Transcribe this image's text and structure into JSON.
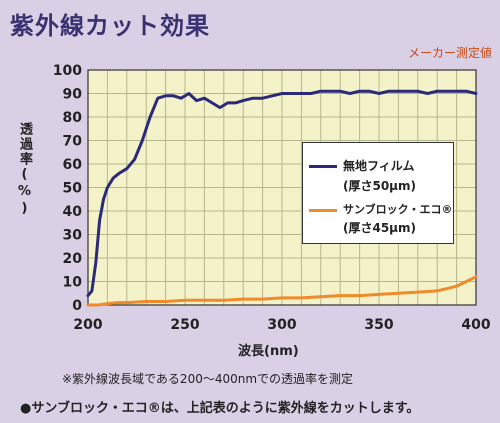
{
  "header": {
    "title": "紫外線カット効果",
    "note": "メーカー測定値"
  },
  "footnote": "※紫外線波長域である200～400nmでの透過率を測定",
  "statement": "●サンブロック・エコ®は、上記表のように紫外線をカットします。",
  "chart_data": {
    "type": "line",
    "title": "紫外線カット効果",
    "xlabel": "波長(nm)",
    "ylabel": "透過率(%)",
    "xlim": [
      200,
      400
    ],
    "ylim": [
      0,
      100
    ],
    "xticks": [
      200,
      250,
      300,
      350,
      400
    ],
    "yticks": [
      0,
      10,
      20,
      30,
      40,
      50,
      60,
      70,
      80,
      90,
      100
    ],
    "grid": true,
    "legend_position": "center-right",
    "series": [
      {
        "name": "無地フィルム",
        "spec": "(厚さ50μm)",
        "color": "#2b2a78",
        "x": [
          200,
          202,
          204,
          206,
          208,
          210,
          213,
          216,
          220,
          224,
          228,
          232,
          236,
          240,
          244,
          248,
          252,
          256,
          260,
          264,
          268,
          272,
          276,
          280,
          285,
          290,
          295,
          300,
          305,
          310,
          315,
          320,
          325,
          330,
          335,
          340,
          345,
          350,
          355,
          360,
          365,
          370,
          375,
          380,
          385,
          390,
          395,
          400
        ],
        "y": [
          4,
          6,
          18,
          36,
          45,
          50,
          54,
          56,
          58,
          62,
          70,
          80,
          88,
          89,
          89,
          88,
          90,
          87,
          88,
          86,
          84,
          86,
          86,
          87,
          88,
          88,
          89,
          90,
          90,
          90,
          90,
          91,
          91,
          91,
          90,
          91,
          91,
          90,
          91,
          91,
          91,
          91,
          90,
          91,
          91,
          91,
          91,
          90
        ]
      },
      {
        "name": "サンブロック・エコ®",
        "spec": "(厚さ45μm)",
        "color": "#f08a2a",
        "x": [
          200,
          205,
          210,
          215,
          220,
          230,
          240,
          250,
          260,
          270,
          280,
          290,
          300,
          310,
          320,
          330,
          340,
          350,
          360,
          370,
          380,
          385,
          390,
          395,
          400
        ],
        "y": [
          0,
          0,
          0.5,
          1,
          1,
          1.5,
          1.5,
          2,
          2,
          2,
          2.5,
          2.5,
          3,
          3,
          3.5,
          4,
          4,
          4.5,
          5,
          5.5,
          6,
          7,
          8,
          10,
          12
        ]
      }
    ]
  }
}
